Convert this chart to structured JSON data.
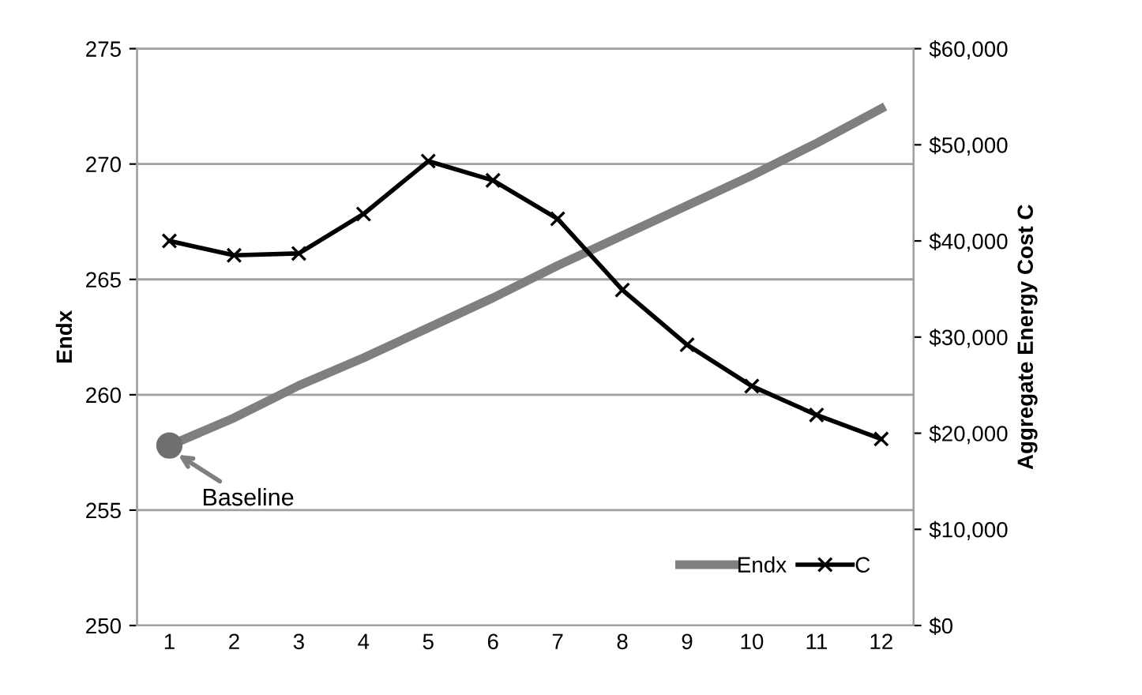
{
  "chart_data": {
    "type": "line",
    "categories": [
      "1",
      "2",
      "3",
      "4",
      "5",
      "6",
      "7",
      "8",
      "9",
      "10",
      "11",
      "12"
    ],
    "series": [
      {
        "name": "Endx",
        "color": "#7f7f7f",
        "marker": "none",
        "values": [
          257.8,
          259.0,
          260.4,
          261.6,
          262.9,
          264.2,
          265.6,
          266.9,
          268.2,
          269.5,
          270.9,
          272.4
        ]
      },
      {
        "name": "C",
        "color": "#000000",
        "marker": "cross",
        "axis": "y2",
        "values": [
          40000,
          38500,
          38700,
          42800,
          48300,
          46300,
          42300,
          34900,
          29200,
          24900,
          21900,
          19400
        ]
      }
    ],
    "ylabel": "Endx",
    "y2label": "Aggregate Energy Cost C",
    "ylim": [
      250,
      275
    ],
    "yticks": [
      250,
      255,
      260,
      265,
      270,
      275
    ],
    "y2lim": [
      0,
      60000
    ],
    "y2ticks": [
      {
        "value": 0,
        "label": "$0"
      },
      {
        "value": 10000,
        "label": "$10,000"
      },
      {
        "value": 20000,
        "label": "$20,000"
      },
      {
        "value": 30000,
        "label": "$30,000"
      },
      {
        "value": 40000,
        "label": "$40,000"
      },
      {
        "value": 50000,
        "label": "$50,000"
      },
      {
        "value": 60000,
        "label": "$60,000"
      }
    ],
    "annotations": [
      {
        "text": "Baseline",
        "x": "1",
        "y": 257.8
      }
    ],
    "grid": "y",
    "legend": "bottom right"
  }
}
